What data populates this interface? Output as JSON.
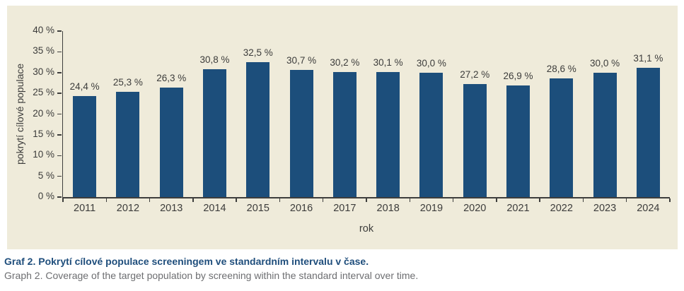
{
  "chart_data": {
    "type": "bar",
    "title": "",
    "xlabel": "rok",
    "ylabel": "pokrytí cílové populace",
    "categories": [
      "2011",
      "2012",
      "2013",
      "2014",
      "2015",
      "2016",
      "2017",
      "2018",
      "2019",
      "2020",
      "2021",
      "2022",
      "2023",
      "2024"
    ],
    "values": [
      24.4,
      25.3,
      26.3,
      30.8,
      32.5,
      30.7,
      30.2,
      30.1,
      30.0,
      27.2,
      26.9,
      28.6,
      30.0,
      31.1
    ],
    "value_labels": [
      "24,4 %",
      "25,3 %",
      "26,3 %",
      "30,8 %",
      "32,5 %",
      "30,7 %",
      "30,2 %",
      "30,1 %",
      "30,0 %",
      "27,2 %",
      "26,9 %",
      "28,6 %",
      "30,0 %",
      "31,1 %"
    ],
    "ylim": [
      0,
      40
    ],
    "yticks": [
      0,
      5,
      10,
      15,
      20,
      25,
      30,
      35,
      40
    ],
    "ytick_labels": [
      "0 %",
      "5 %",
      "10 %",
      "15 %",
      "20 %",
      "25 %",
      "30 %",
      "35 %",
      "40 %"
    ],
    "grid": false,
    "legend": "none",
    "bar_color": "#1C4E7B"
  },
  "caption": {
    "czech": "Graf 2. Pokrytí cílové populace screeningem ve standardním intervalu v čase.",
    "english": "Graph 2. Coverage of the target population by screening within the standard interval over time."
  },
  "colors": {
    "panel_bg": "#EFEBDA",
    "bar": "#1C4E7B",
    "axis": "#3E3E3D",
    "text": "#3C3C3B",
    "caption_czech": "#1F4E7C",
    "caption_english": "#6D6E71"
  }
}
